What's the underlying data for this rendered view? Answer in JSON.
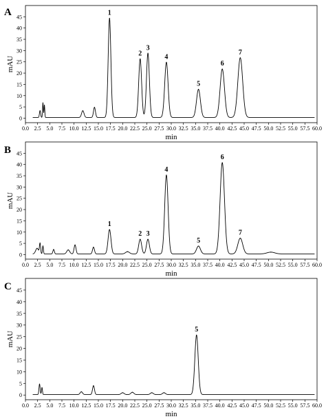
{
  "chart_data": [
    {
      "type": "line",
      "panel": "A",
      "xlabel": "min",
      "ylabel": "mAU",
      "xlim": [
        0,
        60
      ],
      "ylim": [
        -2,
        50
      ],
      "xticks": [
        "0.0",
        "2.5",
        "5.0",
        "7.5",
        "10.0",
        "12.5",
        "15.0",
        "17.5",
        "20.0",
        "22.5",
        "25.0",
        "27.5",
        "30.0",
        "32.5",
        "35.0",
        "37.5",
        "40.0",
        "42.5",
        "45.0",
        "47.5",
        "50.0",
        "52.5",
        "55.0",
        "57.5",
        "60.0"
      ],
      "yticks": [
        "0",
        "5",
        "10",
        "15",
        "20",
        "25",
        "30",
        "35",
        "40",
        "45"
      ],
      "baseline": 0.3,
      "peaks": [
        {
          "label": "",
          "x": 3.0,
          "y": 3.0,
          "w": 0.12
        },
        {
          "label": "",
          "x": 3.6,
          "y": 6.5,
          "w": 0.08
        },
        {
          "label": "",
          "x": 3.9,
          "y": 5.5,
          "w": 0.08
        },
        {
          "label": "",
          "x": 11.8,
          "y": 3.0,
          "w": 0.25
        },
        {
          "label": "",
          "x": 14.2,
          "y": 4.5,
          "w": 0.2
        },
        {
          "label": "1",
          "x": 17.3,
          "y": 44.0,
          "w": 0.28
        },
        {
          "label": "2",
          "x": 23.6,
          "y": 26.0,
          "w": 0.3
        },
        {
          "label": "3",
          "x": 25.2,
          "y": 28.5,
          "w": 0.3
        },
        {
          "label": "4",
          "x": 29.0,
          "y": 24.5,
          "w": 0.35
        },
        {
          "label": "5",
          "x": 35.6,
          "y": 12.5,
          "w": 0.4
        },
        {
          "label": "6",
          "x": 40.5,
          "y": 21.5,
          "w": 0.45
        },
        {
          "label": "7",
          "x": 44.2,
          "y": 26.5,
          "w": 0.5
        }
      ]
    },
    {
      "type": "line",
      "panel": "B",
      "xlabel": "min",
      "ylabel": "mAU",
      "xlim": [
        0,
        60
      ],
      "ylim": [
        -2,
        50
      ],
      "xticks": [
        "0.0",
        "2.5",
        "5.0",
        "7.5",
        "10.0",
        "12.5",
        "15.0",
        "17.5",
        "20.0",
        "22.5",
        "25.0",
        "27.5",
        "30.0",
        "32.5",
        "35.0",
        "37.5",
        "40.0",
        "42.5",
        "45.0",
        "47.5",
        "50.0",
        "52.5",
        "55.0",
        "57.5",
        "60.0"
      ],
      "yticks": [
        "0",
        "5",
        "10",
        "15",
        "20",
        "25",
        "30",
        "35",
        "40",
        "45"
      ],
      "baseline": 0.3,
      "peaks": [
        {
          "label": "",
          "x": 2.4,
          "y": 2.5,
          "w": 0.3
        },
        {
          "label": "",
          "x": 3.0,
          "y": 4.5,
          "w": 0.12
        },
        {
          "label": "",
          "x": 3.6,
          "y": 3.5,
          "w": 0.1
        },
        {
          "label": "",
          "x": 5.8,
          "y": 2.0,
          "w": 0.15
        },
        {
          "label": "",
          "x": 8.8,
          "y": 1.8,
          "w": 0.3
        },
        {
          "label": "",
          "x": 10.2,
          "y": 4.0,
          "w": 0.2
        },
        {
          "label": "",
          "x": 14.0,
          "y": 3.0,
          "w": 0.2
        },
        {
          "label": "1",
          "x": 17.3,
          "y": 10.8,
          "w": 0.3
        },
        {
          "label": "",
          "x": 21.0,
          "y": 1.0,
          "w": 0.4
        },
        {
          "label": "2",
          "x": 23.6,
          "y": 6.5,
          "w": 0.3
        },
        {
          "label": "3",
          "x": 25.2,
          "y": 6.5,
          "w": 0.3
        },
        {
          "label": "4",
          "x": 29.0,
          "y": 35.0,
          "w": 0.35
        },
        {
          "label": "5",
          "x": 35.6,
          "y": 3.5,
          "w": 0.4
        },
        {
          "label": "6",
          "x": 40.5,
          "y": 40.5,
          "w": 0.45
        },
        {
          "label": "7",
          "x": 44.2,
          "y": 7.0,
          "w": 0.5
        },
        {
          "label": "",
          "x": 50.5,
          "y": 0.8,
          "w": 0.8
        }
      ]
    },
    {
      "type": "line",
      "panel": "C",
      "xlabel": "min",
      "ylabel": "mAU",
      "xlim": [
        0,
        60
      ],
      "ylim": [
        -2,
        50
      ],
      "xticks": [
        "0.0",
        "2.5",
        "5.0",
        "7.5",
        "10.0",
        "12.5",
        "15.0",
        "17.5",
        "20.0",
        "22.5",
        "25.0",
        "27.5",
        "30.0",
        "32.5",
        "35.0",
        "37.5",
        "40.0",
        "42.5",
        "45.0",
        "47.5",
        "50.0",
        "52.5",
        "55.0",
        "57.5",
        "60.0"
      ],
      "yticks": [
        "0",
        "5",
        "10",
        "15",
        "20",
        "25",
        "30",
        "35",
        "40",
        "45"
      ],
      "baseline": 0.2,
      "peaks": [
        {
          "label": "",
          "x": 2.9,
          "y": 4.5,
          "w": 0.12
        },
        {
          "label": "",
          "x": 3.4,
          "y": 3.0,
          "w": 0.1
        },
        {
          "label": "",
          "x": 11.5,
          "y": 1.2,
          "w": 0.25
        },
        {
          "label": "",
          "x": 14.0,
          "y": 3.8,
          "w": 0.2
        },
        {
          "label": "",
          "x": 20.0,
          "y": 0.8,
          "w": 0.3
        },
        {
          "label": "",
          "x": 22.0,
          "y": 1.0,
          "w": 0.3
        },
        {
          "label": "",
          "x": 26.0,
          "y": 0.8,
          "w": 0.3
        },
        {
          "label": "",
          "x": 28.5,
          "y": 0.8,
          "w": 0.3
        },
        {
          "label": "5",
          "x": 35.2,
          "y": 25.5,
          "w": 0.35
        }
      ]
    }
  ]
}
